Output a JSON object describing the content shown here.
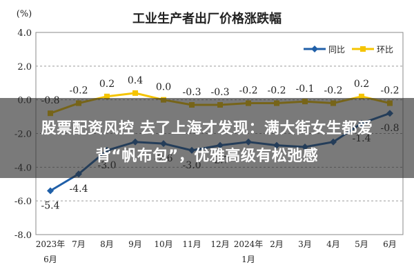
{
  "chart_data": {
    "type": "line",
    "title": "工业生产者出厂价格涨跌幅",
    "unit_label": "(%)",
    "ylim": [
      -8.0,
      4.0
    ],
    "y_ticks": [
      4.0,
      2.0,
      0.0,
      -2.0,
      -4.0,
      -6.0,
      -8.0
    ],
    "y_tick_labels": [
      "4.0",
      "2.0",
      "0.0",
      "-2.0",
      "-4.0",
      "-6.0",
      "-8.0"
    ],
    "categories": [
      {
        "l1": "2023年",
        "l2": "6月"
      },
      {
        "l1": "7月",
        "l2": ""
      },
      {
        "l1": "8月",
        "l2": ""
      },
      {
        "l1": "9月",
        "l2": ""
      },
      {
        "l1": "10月",
        "l2": ""
      },
      {
        "l1": "11月",
        "l2": ""
      },
      {
        "l1": "12月",
        "l2": ""
      },
      {
        "l1": "2024年",
        "l2": "1月"
      },
      {
        "l1": "2月",
        "l2": ""
      },
      {
        "l1": "3月",
        "l2": ""
      },
      {
        "l1": "4月",
        "l2": ""
      },
      {
        "l1": "5月",
        "l2": ""
      },
      {
        "l1": "6月",
        "l2": ""
      }
    ],
    "legend_position": "top-right",
    "grid": true,
    "series": [
      {
        "name": "同比",
        "color": "#1f5fa8",
        "values": [
          -5.4,
          -4.4,
          -3.0,
          -2.5,
          -2.6,
          -3.0,
          -2.7,
          -2.5,
          -2.7,
          -2.8,
          -2.5,
          -1.4,
          -0.8
        ],
        "labels": [
          "-5.4",
          "-4.4",
          "-3.0",
          "",
          "-2.6",
          "-3.0",
          "-2.7",
          "",
          "",
          "",
          "",
          "-1.4",
          "-0.8"
        ]
      },
      {
        "name": "环比",
        "color": "#f5c400",
        "values": [
          -0.8,
          -0.2,
          0.2,
          0.4,
          0.0,
          -0.3,
          -0.3,
          -0.2,
          -0.2,
          -0.1,
          -0.2,
          0.2,
          -0.2
        ],
        "labels": [
          "-0.8",
          "-0.2",
          "0.2",
          "0.4",
          "0.0",
          "-0.3",
          "-0.3",
          "-0.2",
          "-0.2",
          "-0.1",
          "-0.2",
          "0.2",
          "-0.2"
        ]
      }
    ]
  },
  "banner": {
    "line1": "股票配资风控 去了上海才发现：满大街女生都爱",
    "line2": "背“帆布包”，优雅高级有松弛感"
  }
}
